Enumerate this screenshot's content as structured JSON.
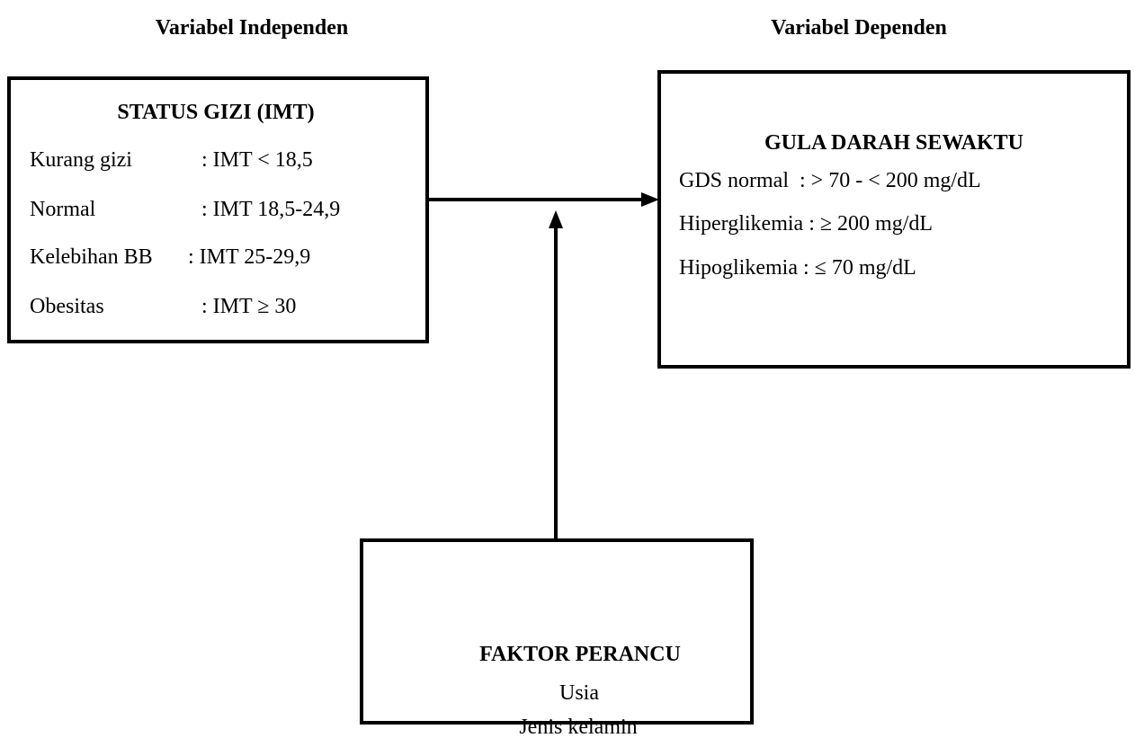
{
  "headings": {
    "independent": "Variabel Independen",
    "dependent": "Variabel Dependen"
  },
  "status_gizi": {
    "title": "STATUS GIZI (IMT)",
    "rows": [
      [
        "Kurang gizi",
        ": IMT < 18,5"
      ],
      [
        "Normal",
        ": IMT 18,5-24,9"
      ],
      [
        "Kelebihan BB",
        ": IMT 25-29,9"
      ],
      [
        "Obesitas",
        ": IMT ≥ 30"
      ]
    ]
  },
  "gula_darah": {
    "title": "GULA DARAH SEWAKTU",
    "lines": [
      "GDS normal  : > 70 - < 200 mg/dL",
      "Hiperglikemia : ≥ 200 mg/dL",
      "Hipoglikemia : ≤ 70 mg/dL"
    ]
  },
  "faktor_perancu": {
    "title": "FAKTOR PERANCU",
    "items": [
      "Usia",
      "Jenis kelamin"
    ]
  }
}
